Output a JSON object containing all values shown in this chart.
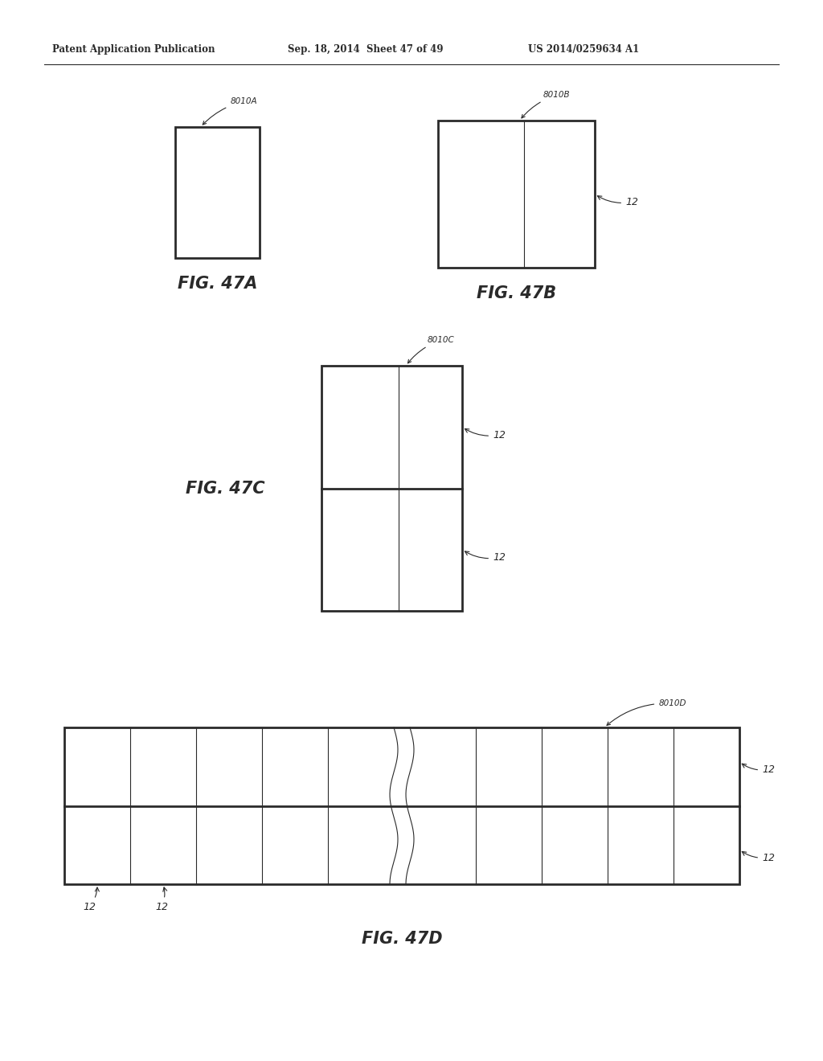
{
  "bg_color": "#ffffff",
  "header_text": "Patent Application Publication",
  "header_date": "Sep. 18, 2014  Sheet 47 of 49",
  "header_patent": "US 2014/0259634 A1",
  "fig47a_label": "8010A",
  "fig47b_label": "8010B",
  "fig47c_label": "8010C",
  "fig47d_label": "8010D",
  "fig47a_caption": "FIG. 47A",
  "fig47b_caption": "FIG. 47B",
  "fig47c_caption": "FIG. 47C",
  "fig47d_caption": "FIG. 47D",
  "label_12": "12",
  "line_color": "#2a2a2a",
  "thin_lw": 0.8,
  "border_lw": 2.0,
  "mid_lw": 2.0
}
